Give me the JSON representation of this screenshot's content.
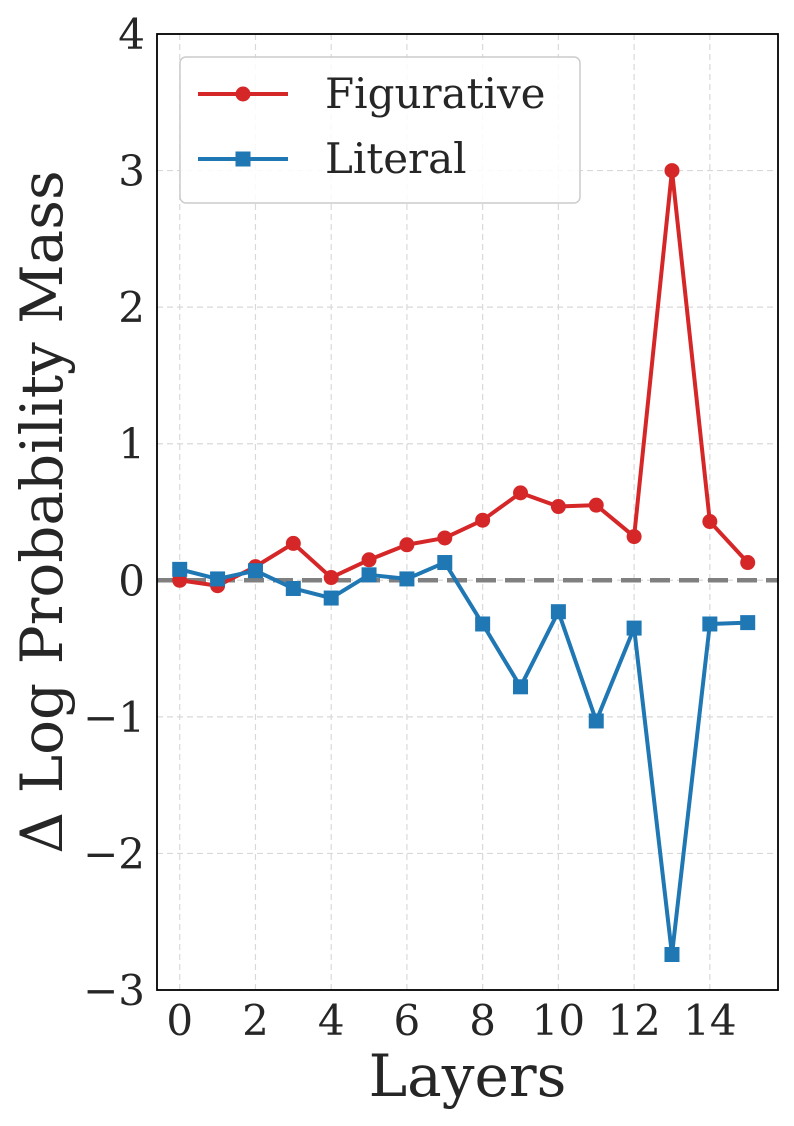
{
  "chart_data": {
    "type": "line",
    "title": "",
    "xlabel": "Layers",
    "ylabel": "Δ Log Probability Mass",
    "x": [
      0,
      1,
      2,
      3,
      4,
      5,
      6,
      7,
      8,
      9,
      10,
      11,
      12,
      13,
      14,
      15
    ],
    "xlim": [
      -0.6,
      15.8
    ],
    "ylim": [
      -3,
      4
    ],
    "xticks": [
      0,
      2,
      4,
      6,
      8,
      10,
      12,
      14
    ],
    "xtick_labels": [
      "0",
      "2",
      "4",
      "6",
      "8",
      "10",
      "12",
      "14"
    ],
    "yticks": [
      -3,
      -2,
      -1,
      0,
      1,
      2,
      3,
      4
    ],
    "ytick_labels": [
      "−3",
      "−2",
      "−1",
      "0",
      "1",
      "2",
      "3",
      "4"
    ],
    "grid": true,
    "legend_position": "top-left",
    "reference_line": {
      "y": 0,
      "color": "#808080",
      "style": "dashed"
    },
    "series": [
      {
        "name": "Figurative",
        "marker": "circle",
        "color": "#d62728",
        "values": [
          0.0,
          -0.04,
          0.1,
          0.27,
          0.02,
          0.15,
          0.26,
          0.31,
          0.44,
          0.64,
          0.54,
          0.55,
          0.32,
          3.0,
          0.43,
          0.13
        ]
      },
      {
        "name": "Literal",
        "marker": "square",
        "color": "#1f77b4",
        "values": [
          0.08,
          0.01,
          0.07,
          -0.06,
          -0.13,
          0.04,
          0.01,
          0.13,
          -0.32,
          -0.78,
          -0.23,
          -1.03,
          -0.35,
          -2.74,
          -0.32,
          -0.31
        ]
      }
    ]
  }
}
